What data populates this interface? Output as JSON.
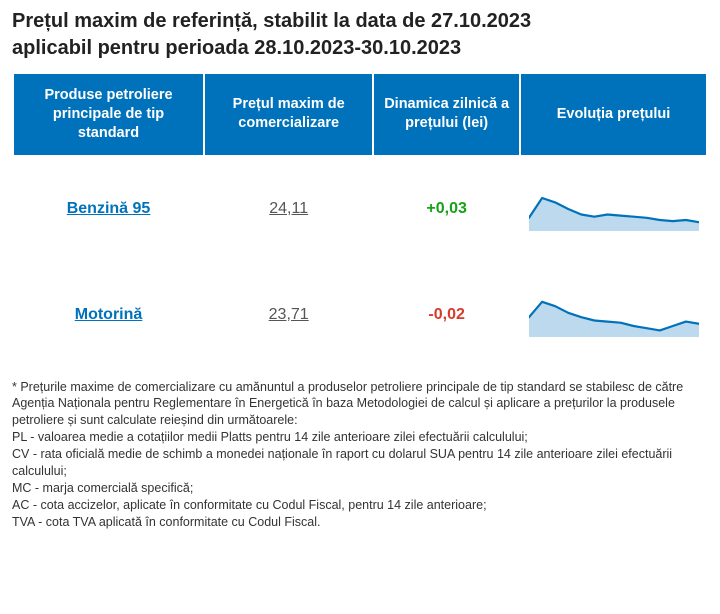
{
  "title_line1": "Prețul maxim de referință, stabilit la data de 27.10.2023",
  "title_line2": "aplicabil pentru perioada 28.10.2023-30.10.2023",
  "colors": {
    "header_bg": "#0072bb",
    "header_text": "#ffffff",
    "link": "#0072bb",
    "body_text": "#555555",
    "delta_positive": "#18a018",
    "delta_negative": "#d63a2a",
    "spark_line": "#0072bb",
    "spark_fill": "#bcd9ee",
    "footnote_text": "#333333"
  },
  "table": {
    "headers": {
      "product": "Produse petroliere principale de tip standard",
      "price": "Prețul maxim de comercializare",
      "delta": "Dinamica zilnică a prețului (lei)",
      "trend": "Evoluția prețului"
    },
    "rows": [
      {
        "product": "Benzină 95",
        "price": "24,11",
        "delta_value": "+0,03",
        "delta_sign": "pos",
        "spark": {
          "points": [
            12,
            30,
            26,
            20,
            15,
            13,
            15,
            14,
            13,
            12,
            10,
            9,
            10,
            8
          ]
        }
      },
      {
        "product": "Motorină",
        "price": "23,71",
        "delta_value": "-0,02",
        "delta_sign": "neg",
        "spark": {
          "points": [
            18,
            32,
            28,
            22,
            18,
            15,
            14,
            13,
            10,
            8,
            6,
            10,
            14,
            12
          ]
        }
      }
    ],
    "spark_config": {
      "width": 170,
      "height": 44,
      "ymin": 0,
      "ymax": 40,
      "line_width": 2.2
    }
  },
  "footnote": {
    "intro": "* Prețurile maxime de comercializare cu amănuntul a produselor petroliere principale de tip standard se stabilesc de către Agenția Naționala pentru Reglementare în Energetică în baza Metodologiei de calcul și aplicare a prețurilor la produsele petroliere și sunt calculate reieșind din următoarele:",
    "lines": [
      "PL - valoarea medie a cotațiilor medii Platts pentru 14 zile anterioare zilei efectuării calculului;",
      "CV - rata oficială medie de schimb a monedei naționale în raport cu dolarul SUA pentru 14 zile anterioare zilei efectuării calculului;",
      "MC - marja comercială specifică;",
      "AC - cota accizelor, aplicate în conformitate cu Codul Fiscal, pentru 14 zile anterioare;",
      "TVA - cota TVA aplicată în conformitate cu Codul Fiscal."
    ]
  }
}
